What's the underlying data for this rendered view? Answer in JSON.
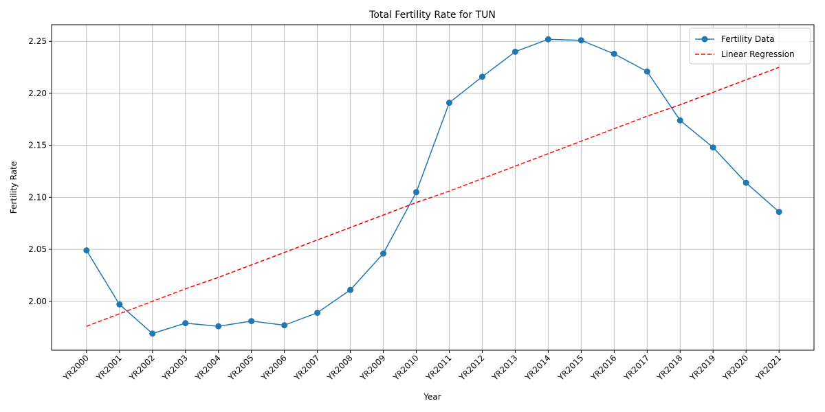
{
  "chart_data": {
    "type": "line",
    "title": "Total Fertility Rate for TUN",
    "xlabel": "Year",
    "ylabel": "Fertility Rate",
    "categories": [
      "YR2000",
      "YR2001",
      "YR2002",
      "YR2003",
      "YR2004",
      "YR2005",
      "YR2006",
      "YR2007",
      "YR2008",
      "YR2009",
      "YR2010",
      "YR2011",
      "YR2012",
      "YR2013",
      "YR2014",
      "YR2015",
      "YR2016",
      "YR2017",
      "YR2018",
      "YR2019",
      "YR2020",
      "YR2021"
    ],
    "series": [
      {
        "name": "Fertility Data",
        "color": "#1f77b4",
        "style": "solid",
        "marker": true,
        "values": [
          2.049,
          1.997,
          1.969,
          1.979,
          1.976,
          1.981,
          1.977,
          1.989,
          2.011,
          2.046,
          2.105,
          2.191,
          2.216,
          2.24,
          2.252,
          2.251,
          2.238,
          2.221,
          2.174,
          2.148,
          2.114,
          2.086
        ]
      },
      {
        "name": "Linear Regression",
        "color": "#ff0000",
        "style": "dashed",
        "marker": false,
        "values": [
          1.976,
          1.988,
          2.0,
          2.012,
          2.023,
          2.035,
          2.047,
          2.059,
          2.071,
          2.083,
          2.095,
          2.106,
          2.118,
          2.13,
          2.142,
          2.154,
          2.166,
          2.178,
          2.189,
          2.201,
          2.213,
          2.225
        ]
      }
    ],
    "ylim": [
      1.953,
      2.266
    ],
    "yticks": [
      {
        "value": 2.0,
        "label": "2.00"
      },
      2.05,
      {
        "value": 2.1,
        "label": "2.10"
      },
      2.15,
      {
        "value": 2.2,
        "label": "2.20"
      },
      2.25
    ],
    "grid": true,
    "legend": "upper right"
  }
}
